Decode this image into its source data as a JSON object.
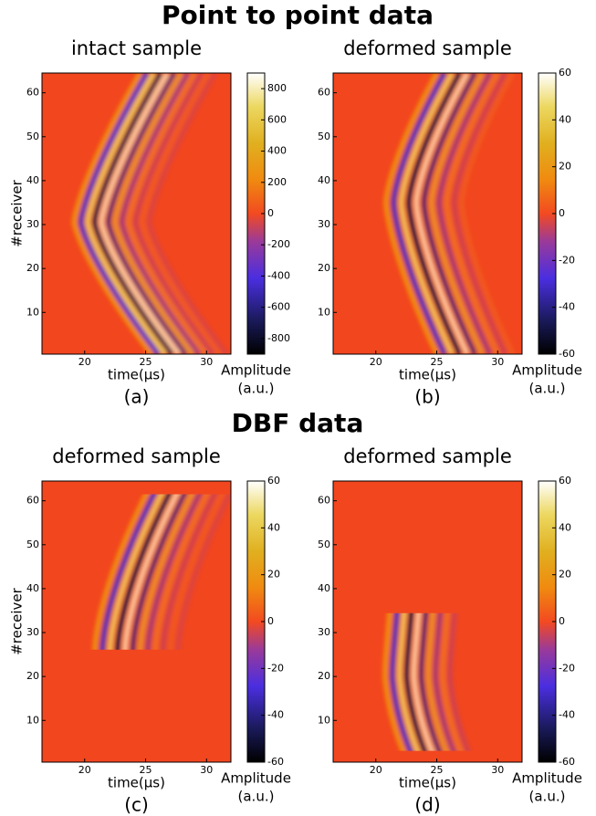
{
  "headings": [
    "Point to point data",
    "DBF data"
  ],
  "chart_data": [
    {
      "type": "heatmap",
      "title": "intact sample",
      "xlabel": "time(µs)",
      "ylabel": "#receiver",
      "panel_label": "(a)",
      "colorbar_label": [
        "Amplitude",
        "(a.u.)"
      ],
      "xlim": [
        16.5,
        32
      ],
      "ylim": [
        0.5,
        64.5
      ],
      "xticks": [
        20,
        25,
        30
      ],
      "yticks": [
        10,
        20,
        30,
        40,
        50,
        60
      ],
      "clim": [
        -900,
        900
      ],
      "cticks": [
        -800,
        -600,
        -400,
        -200,
        0,
        200,
        400,
        600,
        800
      ]
    },
    {
      "type": "heatmap",
      "title": "deformed sample",
      "xlabel": "time(µs)",
      "panel_label": "(b)",
      "colorbar_label": [
        "Amplitude",
        "(a.u.)"
      ],
      "xlim": [
        16.5,
        32
      ],
      "ylim": [
        0.5,
        64.5
      ],
      "xticks": [
        20,
        25,
        30
      ],
      "yticks": [
        10,
        20,
        30,
        40,
        50,
        60
      ],
      "clim": [
        -60,
        60
      ],
      "cticks": [
        -60,
        -40,
        -20,
        0,
        20,
        40,
        60
      ]
    },
    {
      "type": "heatmap",
      "title": "deformed sample",
      "xlabel": "time(µs)",
      "ylabel": "#receiver",
      "panel_label": "(c)",
      "colorbar_label": [
        "Amplitude",
        "(a.u.)"
      ],
      "xlim": [
        16.5,
        32
      ],
      "ylim": [
        0.5,
        64.5
      ],
      "xticks": [
        20,
        25,
        30
      ],
      "yticks": [
        10,
        20,
        30,
        40,
        50,
        60
      ],
      "clim": [
        -60,
        60
      ],
      "cticks": [
        -60,
        -40,
        -20,
        0,
        20,
        40,
        60
      ]
    },
    {
      "type": "heatmap",
      "title": "deformed sample",
      "xlabel": "time(µs)",
      "panel_label": "(d)",
      "colorbar_label": [
        "Amplitude",
        "(a.u.)"
      ],
      "xlim": [
        16.5,
        32
      ],
      "ylim": [
        0.5,
        64.5
      ],
      "xticks": [
        20,
        25,
        30
      ],
      "yticks": [
        10,
        20,
        30,
        40,
        50,
        60
      ],
      "clim": [
        -60,
        60
      ],
      "cticks": [
        -60,
        -40,
        -20,
        0,
        20,
        40,
        60
      ]
    }
  ]
}
